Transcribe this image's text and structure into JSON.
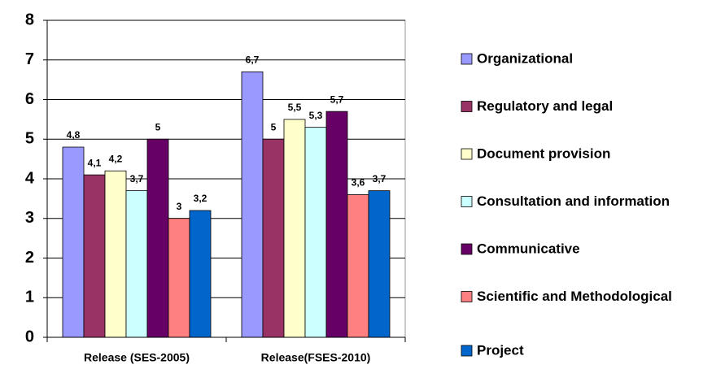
{
  "chart_data": {
    "type": "bar",
    "categories": [
      "Release (SES-2005)",
      "Release(FSES-2010)"
    ],
    "series": [
      {
        "name": "Organizational",
        "color": "#9999ff",
        "values": [
          4.8,
          6.7
        ],
        "value_labels": [
          "4,8",
          "6,7"
        ]
      },
      {
        "name": "Regulatory and legal",
        "color": "#993366",
        "values": [
          4.1,
          5
        ],
        "value_labels": [
          "4,1",
          "5"
        ]
      },
      {
        "name": "Document provision",
        "color": "#ffffcc",
        "values": [
          4.2,
          5.5
        ],
        "value_labels": [
          "4,2",
          "5,5"
        ]
      },
      {
        "name": "Consultation and information",
        "color": "#ccffff",
        "values": [
          3.7,
          5.3
        ],
        "value_labels": [
          "3,7",
          "5,3"
        ]
      },
      {
        "name": "Communicative",
        "color": "#660066",
        "values": [
          5,
          5.7
        ],
        "value_labels": [
          "5",
          "5,7"
        ]
      },
      {
        "name": "Scientific and Methodological",
        "color": "#ff8080",
        "values": [
          3,
          3.6
        ],
        "value_labels": [
          "3",
          "3,6"
        ]
      },
      {
        "name": "Project",
        "color": "#0066cc",
        "values": [
          3.2,
          3.7
        ],
        "value_labels": [
          "3,2",
          "3,7"
        ]
      }
    ],
    "ylim": [
      0,
      8
    ],
    "yticks": [
      0,
      1,
      2,
      3,
      4,
      5,
      6,
      7,
      8
    ],
    "grid": true,
    "legend": "right"
  }
}
